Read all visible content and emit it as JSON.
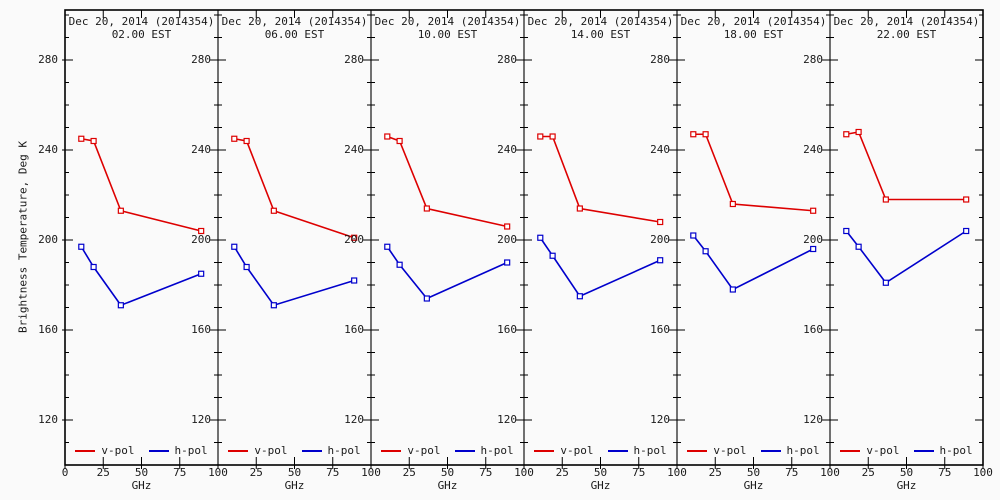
{
  "figure": {
    "y_axis_label": "Brightness Temperature, Deg K",
    "x_axis_label": "GHz",
    "y_ticks": [
      "280",
      "240",
      "200",
      "160",
      "120"
    ],
    "x_ticks": [
      "0",
      "25",
      "50",
      "75",
      "100"
    ],
    "legend": {
      "v_label": "v-pol",
      "h_label": "h-pol"
    },
    "colors": {
      "v_pol": "#dd0000",
      "h_pol": "#0000cc",
      "axis": "#000000",
      "background": "#fafafa"
    }
  },
  "chart_data": {
    "type": "line",
    "x_ghz": [
      10.65,
      18.7,
      36.5,
      89
    ],
    "x_axis": {
      "label": "GHz",
      "range": [
        0,
        100
      ],
      "major_ticks": [
        0,
        25,
        50,
        75,
        100
      ]
    },
    "y_axis": {
      "label": "Brightness Temperature, Deg K",
      "range": [
        100,
        302
      ],
      "major_ticks": [
        280,
        240,
        200,
        160,
        120
      ],
      "minor_tick_step": 10
    },
    "series_meta": [
      {
        "name": "v-pol",
        "color": "#dd0000"
      },
      {
        "name": "h-pol",
        "color": "#0000cc"
      }
    ],
    "panels": [
      {
        "date": "Dec 20, 2014 (2014354)",
        "time": "02.00 EST",
        "v_pol": [
          245,
          244,
          213,
          204
        ],
        "h_pol": [
          197,
          188,
          171,
          185
        ]
      },
      {
        "date": "Dec 20, 2014 (2014354)",
        "time": "06.00 EST",
        "v_pol": [
          245,
          244,
          213,
          201
        ],
        "h_pol": [
          197,
          188,
          171,
          182
        ]
      },
      {
        "date": "Dec 20, 2014 (2014354)",
        "time": "10.00 EST",
        "v_pol": [
          246,
          244,
          214,
          206
        ],
        "h_pol": [
          197,
          189,
          174,
          190
        ]
      },
      {
        "date": "Dec 20, 2014 (2014354)",
        "time": "14.00 EST",
        "v_pol": [
          246,
          246,
          214,
          208
        ],
        "h_pol": [
          201,
          193,
          175,
          191
        ]
      },
      {
        "date": "Dec 20, 2014 (2014354)",
        "time": "18.00 EST",
        "v_pol": [
          247,
          247,
          216,
          213
        ],
        "h_pol": [
          202,
          195,
          178,
          196
        ]
      },
      {
        "date": "Dec 20, 2014 (2014354)",
        "time": "22.00 EST",
        "v_pol": [
          247,
          248,
          218,
          218
        ],
        "h_pol": [
          204,
          197,
          181,
          204
        ]
      }
    ]
  }
}
